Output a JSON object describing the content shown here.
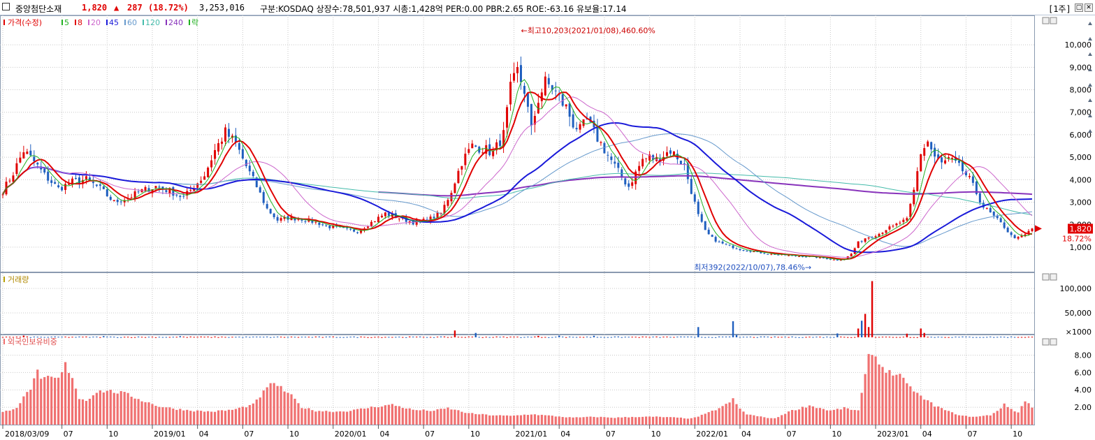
{
  "header": {
    "name": "중앙첨단소재",
    "price": "1,820",
    "change_arrow": "▲",
    "change": "287",
    "change_pct": "(18.72%)",
    "volume": "3,253,016",
    "info": "구분:KOSDAQ 상장수:78,501,937 시총:1,428억 PER:0.00 PBR:2.65 ROE:-63.16 유보율:17.14",
    "period": "[1주]"
  },
  "colors": {
    "up": "#e00000",
    "down": "#1f5fbf",
    "ma5": "#21b021",
    "ma8": "#e00000",
    "ma20": "#cc66cc",
    "ma45": "#1a1ad9",
    "ma60": "#6699cc",
    "ma120": "#44bbaa",
    "ma240": "#8833bb",
    "foreign": "#f07070",
    "grid": "#c8c8c8"
  },
  "legend": {
    "price": "가격(수정)",
    "ma": [
      {
        "label": "5",
        "color": "#21b021"
      },
      {
        "label": "8",
        "color": "#e00000"
      },
      {
        "label": "20",
        "color": "#cc66cc"
      },
      {
        "label": "45",
        "color": "#1a1ad9"
      },
      {
        "label": "60",
        "color": "#6699cc"
      },
      {
        "label": "120",
        "color": "#44bbaa"
      },
      {
        "label": "240",
        "color": "#8833bb"
      },
      {
        "label": "락",
        "color": "#21b021"
      }
    ],
    "volume": "거래량",
    "foreign": "외국인보유비중"
  },
  "chart_data": [
    {
      "type": "candlestick",
      "panel": "price",
      "ylim": [
        0,
        11000
      ],
      "y_ticks": [
        {
          "v": 1000,
          "label": "1,000"
        },
        {
          "v": 2000,
          "label": "2,000"
        },
        {
          "v": 3000,
          "label": "3,000"
        },
        {
          "v": 4000,
          "label": "4,000"
        },
        {
          "v": 5000,
          "label": "5,000"
        },
        {
          "v": 6000,
          "label": "6,000"
        },
        {
          "v": 7000,
          "label": "7,000"
        },
        {
          "v": 8000,
          "label": "8,000"
        },
        {
          "v": 9000,
          "label": "9,000"
        },
        {
          "v": 10000,
          "label": "10,000"
        }
      ],
      "x_start": "2018/03/09",
      "x_ticks": [
        {
          "w": 0,
          "label": "2018/03/09"
        },
        {
          "w": 17,
          "label": "07"
        },
        {
          "w": 30,
          "label": "10"
        },
        {
          "w": 43,
          "label": "2019/01"
        },
        {
          "w": 56,
          "label": "04"
        },
        {
          "w": 69,
          "label": "07"
        },
        {
          "w": 82,
          "label": "10"
        },
        {
          "w": 95,
          "label": "2020/01"
        },
        {
          "w": 108,
          "label": "04"
        },
        {
          "w": 121,
          "label": "07"
        },
        {
          "w": 134,
          "label": "10"
        },
        {
          "w": 147,
          "label": "2021/01"
        },
        {
          "w": 160,
          "label": "04"
        },
        {
          "w": 173,
          "label": "07"
        },
        {
          "w": 186,
          "label": "10"
        },
        {
          "w": 199,
          "label": "2022/01"
        },
        {
          "w": 212,
          "label": "04"
        },
        {
          "w": 225,
          "label": "07"
        },
        {
          "w": 238,
          "label": "10"
        },
        {
          "w": 251,
          "label": "2023/01"
        },
        {
          "w": 264,
          "label": "04"
        },
        {
          "w": 277,
          "label": "07"
        },
        {
          "w": 290,
          "label": "10"
        }
      ],
      "anchors": [
        [
          0,
          3500
        ],
        [
          3,
          4300
        ],
        [
          6,
          5300
        ],
        [
          9,
          4800
        ],
        [
          12,
          4200
        ],
        [
          16,
          3600
        ],
        [
          20,
          3900
        ],
        [
          24,
          4000
        ],
        [
          28,
          3600
        ],
        [
          32,
          3000
        ],
        [
          36,
          3200
        ],
        [
          40,
          3500
        ],
        [
          44,
          3700
        ],
        [
          48,
          3500
        ],
        [
          52,
          3200
        ],
        [
          55,
          3700
        ],
        [
          58,
          4200
        ],
        [
          61,
          5300
        ],
        [
          64,
          6100
        ],
        [
          67,
          5600
        ],
        [
          70,
          4600
        ],
        [
          73,
          3700
        ],
        [
          76,
          2700
        ],
        [
          79,
          2200
        ],
        [
          82,
          2300
        ],
        [
          86,
          2250
        ],
        [
          90,
          2100
        ],
        [
          94,
          1900
        ],
        [
          98,
          1800
        ],
        [
          102,
          1700
        ],
        [
          106,
          2100
        ],
        [
          110,
          2500
        ],
        [
          114,
          2300
        ],
        [
          118,
          2100
        ],
        [
          122,
          2200
        ],
        [
          126,
          2500
        ],
        [
          129,
          3500
        ],
        [
          132,
          4800
        ],
        [
          135,
          5500
        ],
        [
          138,
          5400
        ],
        [
          141,
          5200
        ],
        [
          144,
          6000
        ],
        [
          146,
          8000
        ],
        [
          148,
          8800
        ],
        [
          150,
          8000
        ],
        [
          152,
          6200
        ],
        [
          154,
          7600
        ],
        [
          156,
          8300
        ],
        [
          158,
          8100
        ],
        [
          160,
          7600
        ],
        [
          162,
          7200
        ],
        [
          164,
          6500
        ],
        [
          166,
          6200
        ],
        [
          168,
          6600
        ],
        [
          170,
          6100
        ],
        [
          172,
          5600
        ],
        [
          174,
          5100
        ],
        [
          176,
          4600
        ],
        [
          178,
          4100
        ],
        [
          180,
          3700
        ],
        [
          182,
          4300
        ],
        [
          184,
          4900
        ],
        [
          186,
          5000
        ],
        [
          188,
          4900
        ],
        [
          190,
          5100
        ],
        [
          192,
          5300
        ],
        [
          194,
          5000
        ],
        [
          196,
          4600
        ],
        [
          198,
          3500
        ],
        [
          200,
          2400
        ],
        [
          202,
          1700
        ],
        [
          204,
          1400
        ],
        [
          206,
          1200
        ],
        [
          208,
          1100
        ],
        [
          210,
          1000
        ],
        [
          212,
          900
        ],
        [
          216,
          800
        ],
        [
          220,
          700
        ],
        [
          224,
          650
        ],
        [
          228,
          600
        ],
        [
          232,
          580
        ],
        [
          236,
          500
        ],
        [
          240,
          420
        ],
        [
          242,
          470
        ],
        [
          244,
          700
        ],
        [
          246,
          1200
        ],
        [
          248,
          1400
        ],
        [
          250,
          1500
        ],
        [
          252,
          1600
        ],
        [
          254,
          1800
        ],
        [
          256,
          1900
        ],
        [
          258,
          2100
        ],
        [
          260,
          2200
        ],
        [
          262,
          3500
        ],
        [
          264,
          5200
        ],
        [
          266,
          5700
        ],
        [
          268,
          5000
        ],
        [
          270,
          4700
        ],
        [
          272,
          4900
        ],
        [
          274,
          4700
        ],
        [
          276,
          4400
        ],
        [
          278,
          4000
        ],
        [
          280,
          3400
        ],
        [
          282,
          2800
        ],
        [
          284,
          2500
        ],
        [
          286,
          2200
        ],
        [
          288,
          1900
        ],
        [
          290,
          1500
        ],
        [
          292,
          1400
        ],
        [
          294,
          1550
        ],
        [
          296,
          1820
        ]
      ],
      "ma": [
        {
          "label": "5",
          "color": "#21b021",
          "width": 1,
          "period": 5
        },
        {
          "label": "8",
          "color": "#e00000",
          "width": 2,
          "period": 8
        },
        {
          "label": "20",
          "color": "#cc66cc",
          "width": 1,
          "period": 20
        },
        {
          "label": "45",
          "color": "#1a1ad9",
          "width": 2,
          "period": 45
        },
        {
          "label": "60",
          "color": "#6699cc",
          "width": 1,
          "period": 60
        },
        {
          "label": "120",
          "color": "#44bbaa",
          "width": 1,
          "period": 120
        },
        {
          "label": "240",
          "color": "#8833bb",
          "width": 2,
          "period": 240
        }
      ],
      "annotations": {
        "high": "최고10,203(2021/01/08),460.60%",
        "low": "최저392(2022/10/07),78.46%"
      },
      "current_price_label": "1,820",
      "current_pct_label": "18.72%"
    },
    {
      "type": "bar",
      "panel": "volume",
      "unit_label": "×1000",
      "y_ticks": [
        {
          "v": 50000,
          "label": "50,000"
        },
        {
          "v": 100000,
          "label": "100,000"
        }
      ],
      "ylim": [
        0,
        120000
      ],
      "spikes": [
        [
          6,
          3500
        ],
        [
          29,
          2500
        ],
        [
          51,
          2400
        ],
        [
          130,
          14000
        ],
        [
          136,
          9000
        ],
        [
          154,
          3000
        ],
        [
          160,
          3600
        ],
        [
          170,
          3200
        ],
        [
          200,
          21000
        ],
        [
          210,
          33000
        ],
        [
          211,
          5000
        ],
        [
          240,
          8000
        ],
        [
          246,
          18000
        ],
        [
          247,
          34000
        ],
        [
          248,
          48000
        ],
        [
          249,
          21000
        ],
        [
          250,
          115000
        ],
        [
          260,
          7500
        ],
        [
          264,
          18000
        ],
        [
          265,
          9000
        ]
      ]
    },
    {
      "type": "bar",
      "panel": "foreign_ownership",
      "y_ticks": [
        {
          "v": 2,
          "label": "2.00"
        },
        {
          "v": 4,
          "label": "4.00"
        },
        {
          "v": 6,
          "label": "6.00"
        },
        {
          "v": 8,
          "label": "8.00"
        }
      ],
      "ylim": [
        0,
        9
      ],
      "anchors": [
        [
          0,
          1.4
        ],
        [
          4,
          2.0
        ],
        [
          8,
          4.2
        ],
        [
          10,
          6.0
        ],
        [
          11,
          5.0
        ],
        [
          13,
          5.5
        ],
        [
          16,
          5.2
        ],
        [
          18,
          6.9
        ],
        [
          20,
          5.5
        ],
        [
          22,
          3.0
        ],
        [
          24,
          2.8
        ],
        [
          27,
          3.8
        ],
        [
          30,
          3.9
        ],
        [
          35,
          3.6
        ],
        [
          40,
          2.8
        ],
        [
          45,
          2.1
        ],
        [
          50,
          1.8
        ],
        [
          55,
          1.6
        ],
        [
          60,
          1.5
        ],
        [
          66,
          1.7
        ],
        [
          72,
          2.3
        ],
        [
          76,
          4.2
        ],
        [
          78,
          4.9
        ],
        [
          80,
          4.2
        ],
        [
          83,
          3.3
        ],
        [
          86,
          2.0
        ],
        [
          90,
          1.6
        ],
        [
          96,
          1.5
        ],
        [
          100,
          1.6
        ],
        [
          106,
          2.0
        ],
        [
          112,
          2.3
        ],
        [
          118,
          1.7
        ],
        [
          124,
          1.6
        ],
        [
          128,
          1.9
        ],
        [
          134,
          1.3
        ],
        [
          140,
          1.1
        ],
        [
          146,
          1.0
        ],
        [
          152,
          1.2
        ],
        [
          158,
          1.0
        ],
        [
          164,
          0.8
        ],
        [
          170,
          0.9
        ],
        [
          176,
          0.8
        ],
        [
          182,
          0.9
        ],
        [
          188,
          0.9
        ],
        [
          194,
          0.8
        ],
        [
          198,
          0.7
        ],
        [
          202,
          1.2
        ],
        [
          206,
          1.9
        ],
        [
          208,
          2.3
        ],
        [
          210,
          2.9
        ],
        [
          212,
          1.8
        ],
        [
          214,
          1.2
        ],
        [
          218,
          0.9
        ],
        [
          222,
          0.7
        ],
        [
          226,
          1.5
        ],
        [
          232,
          2.2
        ],
        [
          238,
          1.6
        ],
        [
          242,
          1.9
        ],
        [
          246,
          1.6
        ],
        [
          248,
          5.5
        ],
        [
          249,
          7.8
        ],
        [
          250,
          8.5
        ],
        [
          252,
          7.0
        ],
        [
          255,
          6.0
        ],
        [
          258,
          5.7
        ],
        [
          260,
          4.5
        ],
        [
          262,
          4.0
        ],
        [
          264,
          3.2
        ],
        [
          268,
          2.2
        ],
        [
          272,
          1.5
        ],
        [
          276,
          1.0
        ],
        [
          280,
          0.9
        ],
        [
          284,
          1.1
        ],
        [
          286,
          1.6
        ],
        [
          288,
          2.3
        ],
        [
          290,
          1.8
        ],
        [
          292,
          1.4
        ],
        [
          294,
          2.8
        ],
        [
          296,
          2.0
        ]
      ]
    }
  ]
}
